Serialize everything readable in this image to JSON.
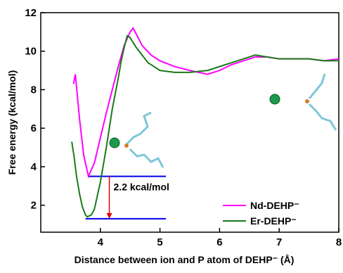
{
  "chart_data": {
    "type": "line",
    "xlabel": "Distance between ion and P atom of DEHP⁻ (Å)",
    "ylabel": "Free energy (kcal/mol)",
    "xlim": [
      3,
      8
    ],
    "ylim": [
      0.6,
      12
    ],
    "xticks": [
      4,
      5,
      6,
      7,
      8
    ],
    "yticks": [
      2,
      4,
      6,
      8,
      10,
      12
    ],
    "legend": "lower right",
    "series": [
      {
        "name": "Nd-DEHP⁻",
        "color": "#ff00ff",
        "x": [
          3.55,
          3.58,
          3.65,
          3.72,
          3.8,
          3.9,
          4.0,
          4.1,
          4.2,
          4.3,
          4.4,
          4.5,
          4.55,
          4.6,
          4.7,
          4.85,
          5.0,
          5.25,
          5.5,
          5.8,
          6.0,
          6.2,
          6.4,
          6.6,
          6.8,
          7.0,
          7.25,
          7.5,
          7.75,
          8.0
        ],
        "values": [
          8.3,
          8.8,
          6.5,
          4.6,
          3.5,
          4.2,
          5.5,
          6.8,
          8.0,
          9.2,
          10.3,
          11.0,
          11.2,
          10.9,
          10.3,
          9.8,
          9.5,
          9.2,
          9.0,
          8.8,
          9.0,
          9.3,
          9.5,
          9.7,
          9.7,
          9.6,
          9.6,
          9.6,
          9.5,
          9.6
        ]
      },
      {
        "name": "Er-DEHP⁻",
        "color": "#1a7a1a",
        "x": [
          3.52,
          3.56,
          3.6,
          3.65,
          3.7,
          3.75,
          3.78,
          3.85,
          3.9,
          4.0,
          4.1,
          4.2,
          4.3,
          4.35,
          4.4,
          4.45,
          4.5,
          4.6,
          4.7,
          4.8,
          5.0,
          5.25,
          5.5,
          5.8,
          6.0,
          6.2,
          6.4,
          6.6,
          6.8,
          7.0,
          7.25,
          7.5,
          7.75,
          8.0
        ],
        "values": [
          5.3,
          4.5,
          3.5,
          2.6,
          1.9,
          1.5,
          1.4,
          1.5,
          1.8,
          3.2,
          5.0,
          7.0,
          8.6,
          9.5,
          10.2,
          10.8,
          10.7,
          10.2,
          9.8,
          9.4,
          9.0,
          8.9,
          8.9,
          9.0,
          9.2,
          9.4,
          9.6,
          9.8,
          9.7,
          9.6,
          9.6,
          9.6,
          9.5,
          9.5
        ]
      }
    ],
    "reference_lines": [
      {
        "y": 3.5,
        "x": [
          3.8,
          5.1
        ],
        "color": "#0000ee"
      },
      {
        "y": 1.3,
        "x": [
          3.75,
          5.1
        ],
        "color": "#0000ee"
      }
    ],
    "annotation": {
      "text": "2.2 kcal/mol",
      "x": 4.15,
      "from": 3.5,
      "to": 1.3,
      "color": "#e00000"
    }
  }
}
